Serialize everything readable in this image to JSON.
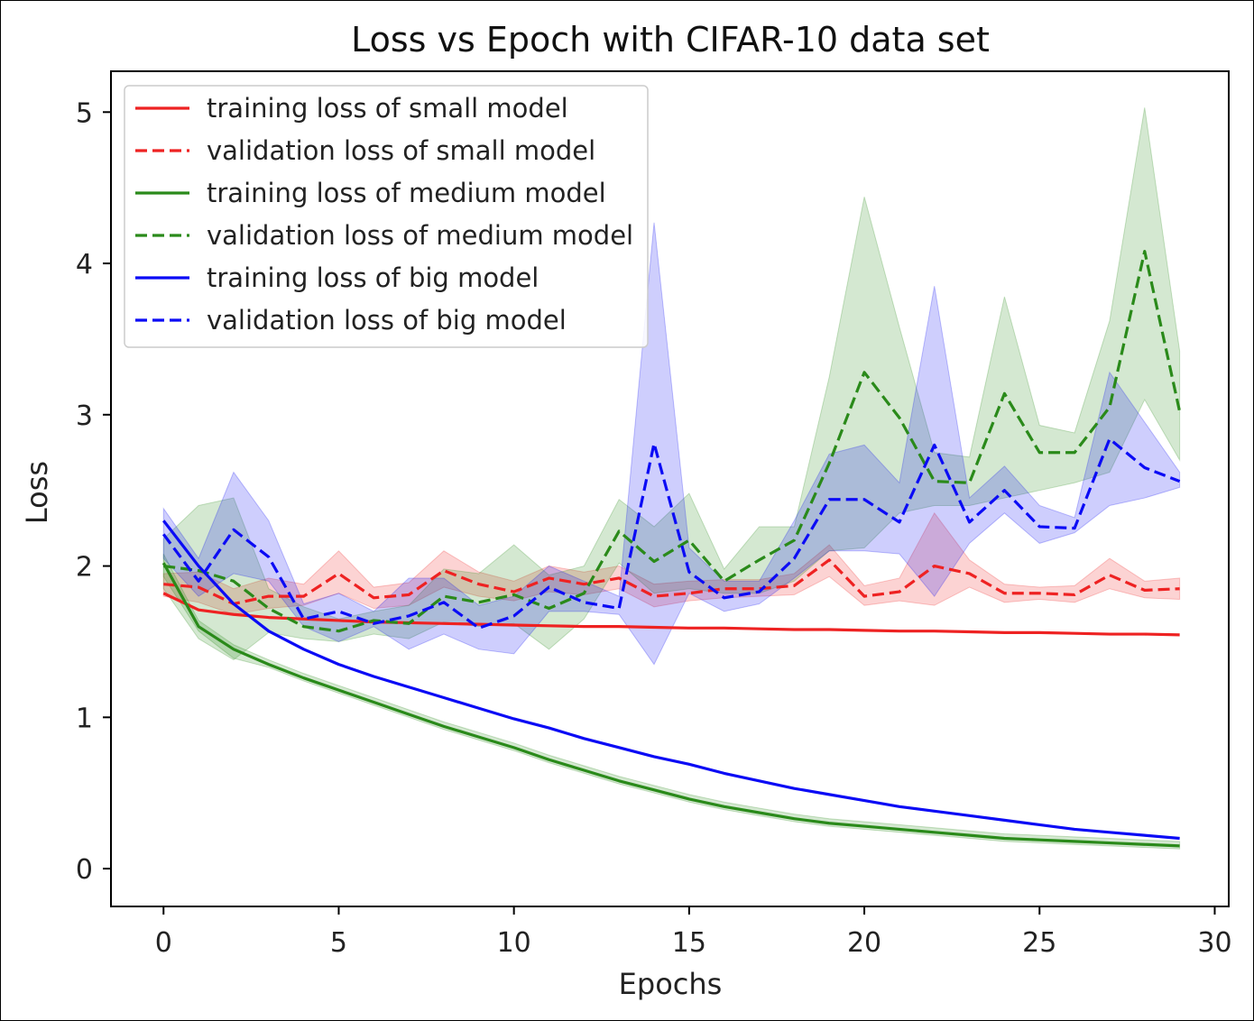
{
  "chart_data": {
    "type": "line",
    "title": "Loss vs Epoch with CIFAR-10 data set",
    "xlabel": "Epochs",
    "ylabel": "Loss",
    "xlim": [
      -1.5,
      30.4
    ],
    "ylim": [
      -0.25,
      5.27
    ],
    "xticks": [
      0,
      5,
      10,
      15,
      20,
      25,
      30
    ],
    "yticks": [
      0,
      1,
      2,
      3,
      4,
      5
    ],
    "grid": false,
    "legend_position": "upper-left",
    "x": [
      0,
      1,
      2,
      3,
      4,
      5,
      6,
      7,
      8,
      9,
      10,
      11,
      12,
      13,
      14,
      15,
      16,
      17,
      18,
      19,
      20,
      21,
      22,
      23,
      24,
      25,
      26,
      27,
      28,
      29
    ],
    "series": [
      {
        "name": "training loss of small model",
        "color": "#ee2222",
        "dash": "solid",
        "values": [
          1.82,
          1.71,
          1.68,
          1.66,
          1.65,
          1.64,
          1.63,
          1.625,
          1.62,
          1.615,
          1.61,
          1.605,
          1.6,
          1.6,
          1.595,
          1.59,
          1.59,
          1.585,
          1.58,
          1.58,
          1.575,
          1.57,
          1.57,
          1.565,
          1.56,
          1.56,
          1.555,
          1.55,
          1.55,
          1.545
        ],
        "band": null
      },
      {
        "name": "validation loss of small model",
        "color": "#ee2222",
        "dash": "dashed",
        "values": [
          1.88,
          1.86,
          1.75,
          1.8,
          1.8,
          1.95,
          1.79,
          1.81,
          1.97,
          1.88,
          1.83,
          1.92,
          1.88,
          1.92,
          1.8,
          1.82,
          1.85,
          1.85,
          1.87,
          2.04,
          1.8,
          1.83,
          2.0,
          1.95,
          1.82,
          1.82,
          1.81,
          1.94,
          1.84,
          1.85
        ],
        "band": {
          "lower": [
            1.8,
            1.76,
            1.68,
            1.72,
            1.74,
            1.82,
            1.72,
            1.74,
            1.86,
            1.8,
            1.77,
            1.83,
            1.81,
            1.85,
            1.73,
            1.77,
            1.79,
            1.8,
            1.81,
            1.93,
            1.74,
            1.77,
            1.74,
            1.86,
            1.76,
            1.78,
            1.76,
            1.85,
            1.79,
            1.78
          ],
          "upper": [
            1.95,
            1.96,
            1.85,
            1.92,
            1.88,
            2.1,
            1.86,
            1.89,
            2.1,
            1.96,
            1.9,
            2.0,
            1.96,
            2.0,
            1.88,
            1.9,
            1.91,
            1.91,
            1.95,
            2.14,
            1.87,
            1.92,
            2.35,
            2.04,
            1.88,
            1.86,
            1.87,
            2.05,
            1.9,
            1.92
          ]
        }
      },
      {
        "name": "training loss of medium model",
        "color": "#2a8a1a",
        "dash": "solid",
        "values": [
          2.02,
          1.6,
          1.45,
          1.35,
          1.26,
          1.18,
          1.1,
          1.02,
          0.94,
          0.87,
          0.8,
          0.72,
          0.65,
          0.58,
          0.52,
          0.46,
          0.41,
          0.37,
          0.33,
          0.3,
          0.28,
          0.26,
          0.24,
          0.22,
          0.2,
          0.19,
          0.18,
          0.17,
          0.16,
          0.15
        ],
        "band": {
          "lower": [
            1.93,
            1.57,
            1.39,
            1.33,
            1.24,
            1.16,
            1.08,
            1.0,
            0.92,
            0.85,
            0.78,
            0.7,
            0.63,
            0.56,
            0.5,
            0.44,
            0.39,
            0.35,
            0.31,
            0.28,
            0.26,
            0.24,
            0.22,
            0.2,
            0.18,
            0.17,
            0.16,
            0.15,
            0.14,
            0.13
          ],
          "upper": [
            2.08,
            1.64,
            1.48,
            1.38,
            1.29,
            1.21,
            1.13,
            1.05,
            0.97,
            0.9,
            0.83,
            0.75,
            0.68,
            0.61,
            0.55,
            0.49,
            0.44,
            0.4,
            0.36,
            0.33,
            0.31,
            0.29,
            0.27,
            0.25,
            0.23,
            0.22,
            0.21,
            0.2,
            0.19,
            0.18
          ]
        }
      },
      {
        "name": "validation loss of medium model",
        "color": "#2a8a1a",
        "dash": "dashed",
        "values": [
          2.0,
          1.97,
          1.9,
          1.72,
          1.6,
          1.57,
          1.64,
          1.62,
          1.8,
          1.76,
          1.81,
          1.72,
          1.82,
          2.23,
          2.03,
          2.17,
          1.9,
          2.04,
          2.17,
          2.68,
          3.28,
          2.98,
          2.56,
          2.55,
          3.14,
          2.75,
          2.75,
          3.05,
          4.08,
          3.02
        ],
        "band": {
          "lower": [
            1.85,
            1.52,
            1.38,
            1.56,
            1.52,
            1.5,
            1.55,
            1.52,
            1.63,
            1.6,
            1.62,
            1.45,
            1.65,
            2.02,
            1.82,
            1.85,
            1.82,
            1.82,
            1.9,
            2.1,
            2.12,
            2.35,
            2.4,
            2.4,
            2.45,
            2.5,
            2.55,
            2.62,
            3.1,
            2.7
          ],
          "upper": [
            2.18,
            2.4,
            2.45,
            1.85,
            1.73,
            1.65,
            1.7,
            1.74,
            1.98,
            1.95,
            2.14,
            1.94,
            2.0,
            2.44,
            2.26,
            2.48,
            1.98,
            2.26,
            2.26,
            3.25,
            4.44,
            3.58,
            2.75,
            2.72,
            3.78,
            2.93,
            2.88,
            3.62,
            5.03,
            3.42
          ]
        }
      },
      {
        "name": "training loss of big model",
        "color": "#0b0bf5",
        "dash": "solid",
        "values": [
          2.3,
          2.0,
          1.75,
          1.57,
          1.45,
          1.35,
          1.27,
          1.2,
          1.13,
          1.06,
          0.99,
          0.93,
          0.86,
          0.8,
          0.74,
          0.69,
          0.63,
          0.58,
          0.53,
          0.49,
          0.45,
          0.41,
          0.38,
          0.35,
          0.32,
          0.29,
          0.26,
          0.24,
          0.22,
          0.2
        ],
        "band": null
      },
      {
        "name": "validation loss of big model",
        "color": "#0b0bf5",
        "dash": "dashed",
        "values": [
          2.21,
          1.9,
          2.24,
          2.06,
          1.65,
          1.7,
          1.62,
          1.67,
          1.76,
          1.59,
          1.67,
          1.86,
          1.76,
          1.72,
          2.81,
          1.96,
          1.79,
          1.83,
          2.05,
          2.44,
          2.44,
          2.29,
          2.8,
          2.29,
          2.5,
          2.26,
          2.25,
          2.84,
          2.65,
          2.56
        ],
        "band": {
          "lower": [
            2.05,
            1.8,
            1.95,
            1.9,
            1.6,
            1.5,
            1.6,
            1.45,
            1.55,
            1.45,
            1.42,
            1.7,
            1.7,
            1.68,
            1.35,
            1.82,
            1.7,
            1.75,
            1.92,
            2.1,
            2.1,
            2.08,
            1.8,
            2.15,
            2.35,
            2.15,
            2.22,
            2.4,
            2.45,
            2.52
          ],
          "upper": [
            2.38,
            2.05,
            2.62,
            2.3,
            1.75,
            1.82,
            1.7,
            1.92,
            1.92,
            1.74,
            1.8,
            2.0,
            1.9,
            1.8,
            4.27,
            2.12,
            1.9,
            1.9,
            2.3,
            2.74,
            2.8,
            2.55,
            3.85,
            2.45,
            2.66,
            2.4,
            2.32,
            3.28,
            2.95,
            2.62
          ]
        }
      }
    ]
  }
}
